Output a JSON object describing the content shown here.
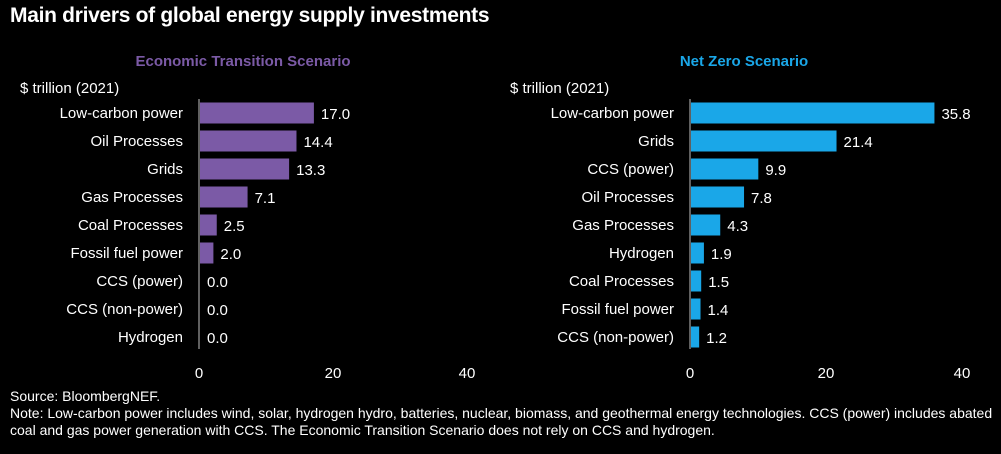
{
  "title": "Main drivers of global energy supply investments",
  "source": "Source: BloombergNEF.",
  "note": "Note: Low-carbon power includes wind, solar, hydrogen hydro, batteries, nuclear, biomass, and geothermal energy technologies. CCS (power) includes abated coal and gas power generation with CCS. The Economic Transition Scenario does not rely on CCS and hydrogen.",
  "chart_data": [
    {
      "type": "bar",
      "orientation": "horizontal",
      "title": "Economic Transition Scenario",
      "unit_label": "$ trillion (2021)",
      "color": "#7b5aa6",
      "title_color": "#7b5aa6",
      "categories": [
        "Low-carbon power",
        "Oil Processes",
        "Grids",
        "Gas Processes",
        "Coal Processes",
        "Fossil fuel power",
        "CCS (power)",
        "CCS (non-power)",
        "Hydrogen"
      ],
      "values": [
        17.0,
        14.4,
        13.3,
        7.1,
        2.5,
        2.0,
        0.0,
        0.0,
        0.0
      ],
      "xlim": [
        0,
        40
      ],
      "xticks": [
        0,
        20,
        40
      ],
      "grid": false
    },
    {
      "type": "bar",
      "orientation": "horizontal",
      "title": "Net Zero Scenario",
      "unit_label": "$ trillion (2021)",
      "color": "#1aa7e8",
      "title_color": "#1aa7e8",
      "categories": [
        "Low-carbon power",
        "Grids",
        "CCS (power)",
        "Oil Processes",
        "Gas Processes",
        "Hydrogen",
        "Coal Processes",
        "Fossil fuel power",
        "CCS (non-power)"
      ],
      "values": [
        35.8,
        21.4,
        9.9,
        7.8,
        4.3,
        1.9,
        1.5,
        1.4,
        1.2
      ],
      "xlim": [
        0,
        40
      ],
      "xticks": [
        0,
        20,
        40
      ],
      "grid": false
    }
  ]
}
